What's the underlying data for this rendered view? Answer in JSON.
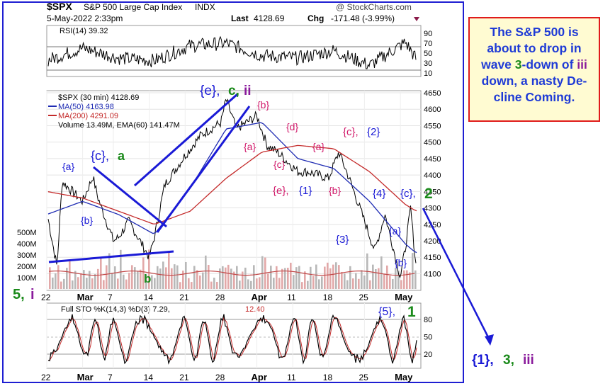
{
  "header": {
    "symbol": "$SPX",
    "name": "S&P 500 Large Cap Index",
    "exchange": "INDX",
    "watermark": "@ StockCharts.com",
    "date": "5-May-2022 2:33pm",
    "last_label": "Last",
    "last_value": "4128.69",
    "chg_label": "Chg",
    "chg_value": "-171.48 (-3.99%)"
  },
  "rsi": {
    "label": "RSI(14) 39.32",
    "ticks": [
      "90",
      "70",
      "50",
      "30",
      "10"
    ],
    "overbought_level": 70,
    "oversold_level": 30
  },
  "main_legend": {
    "price": "$SPX (30 min) 4128.69",
    "ma50": "MA(50) 4163.98",
    "ma200": "MA(200) 4291.09",
    "volume": "Volume 13.49M, EMA(60) 141.47M"
  },
  "price_axis": [
    "4650",
    "4600",
    "4550",
    "4500",
    "4450",
    "4400",
    "4350",
    "4300",
    "4250",
    "4200",
    "4150",
    "4100"
  ],
  "volume_axis": [
    "500M",
    "400M",
    "300M",
    "200M",
    "100M"
  ],
  "x_axis": [
    "22",
    "Mar",
    "7",
    "14",
    "21",
    "28",
    "Apr",
    "11",
    "18",
    "25",
    "May"
  ],
  "sto": {
    "label_prefix": "Full STO %K(14,3) %D(3) 7.29,",
    "label_value": "12.40",
    "ticks": [
      "80",
      "50",
      "20"
    ]
  },
  "wave_labels": {
    "a_top": "{a}",
    "b_left": "{b}",
    "c_a": "{c},",
    "c_a2": "a",
    "b_low": "b",
    "five_i": "5,",
    "five_i2": "i",
    "e_c_ii": "{e},",
    "e_c_ii2": "c,",
    "e_c_ii3": "ii",
    "b_mid": "{b}",
    "a_mid": "{a}",
    "c_mid": "{c}",
    "d_mid": "{d}",
    "a_mid2": "{a}",
    "c2": "{c},",
    "c2b": "{2}",
    "e1": "{e},",
    "e1b": "{1}",
    "b_mid2": "{b}",
    "three": "{3}",
    "four": "{4}",
    "a_right": "{a}",
    "c_right": "{c},",
    "c_right2": "2",
    "b_right": "{b}",
    "five_1": "{5},",
    "five_1b": "1",
    "proj1": "{1},",
    "proj2": "3,",
    "proj3": "iii"
  },
  "annotation": {
    "l1": "The S&P 500 is",
    "l2": "about to drop in",
    "l3a": "wave ",
    "l3b": "3",
    "l3c": "-down of ",
    "l3d": "iii",
    "l4": "down, a nasty De-",
    "l5": "cline Coming."
  },
  "chart_data": [
    {
      "type": "line",
      "title": "$SPX S&P 500 Large Cap Index INDX",
      "subtitle": "5-May-2022 2:33pm",
      "series": [
        {
          "name": "$SPX (30 min) 4128.69",
          "x": [
            "2022-02-22",
            "2022-02-24",
            "2022-02-25",
            "2022-03-01",
            "2022-03-03",
            "2022-03-04",
            "2022-03-07",
            "2022-03-08",
            "2022-03-10",
            "2022-03-14",
            "2022-03-15",
            "2022-03-17",
            "2022-03-21",
            "2022-03-24",
            "2022-03-28",
            "2022-03-29",
            "2022-03-31",
            "2022-04-04",
            "2022-04-06",
            "2022-04-08",
            "2022-04-12",
            "2022-04-14",
            "2022-04-18",
            "2022-04-20",
            "2022-04-22",
            "2022-04-25",
            "2022-04-27",
            "2022-04-29",
            "2022-05-02",
            "2022-05-03",
            "2022-05-04",
            "2022-05-05"
          ],
          "values": [
            4290,
            4120,
            4380,
            4320,
            4395,
            4330,
            4200,
            4210,
            4260,
            4150,
            4210,
            4370,
            4460,
            4520,
            4560,
            4630,
            4540,
            4580,
            4490,
            4470,
            4410,
            4410,
            4390,
            4470,
            4390,
            4260,
            4170,
            4280,
            4090,
            4180,
            4300,
            4128.69
          ]
        },
        {
          "name": "MA(50) 4163.98",
          "x": [
            "2022-02-22",
            "2022-03-01",
            "2022-03-08",
            "2022-03-15",
            "2022-03-22",
            "2022-03-29",
            "2022-04-05",
            "2022-04-12",
            "2022-04-19",
            "2022-04-26",
            "2022-05-03",
            "2022-05-05"
          ],
          "values": [
            4280,
            4320,
            4280,
            4220,
            4360,
            4540,
            4560,
            4450,
            4420,
            4320,
            4190,
            4163.98
          ]
        },
        {
          "name": "MA(200) 4291.09",
          "x": [
            "2022-02-22",
            "2022-03-01",
            "2022-03-08",
            "2022-03-15",
            "2022-03-22",
            "2022-03-29",
            "2022-04-05",
            "2022-04-12",
            "2022-04-19",
            "2022-04-26",
            "2022-05-03",
            "2022-05-05"
          ],
          "values": [
            4350,
            4330,
            4290,
            4250,
            4290,
            4390,
            4470,
            4490,
            4480,
            4410,
            4310,
            4291.09
          ]
        }
      ],
      "ylim": [
        4060,
        4650
      ],
      "xlabel": "",
      "ylabel": ""
    },
    {
      "type": "line",
      "title": "RSI(14) 39.32",
      "series": [
        {
          "name": "RSI(14)",
          "x": [
            "2022-02-22",
            "2022-03-01",
            "2022-03-08",
            "2022-03-15",
            "2022-03-22",
            "2022-03-29",
            "2022-04-05",
            "2022-04-12",
            "2022-04-19",
            "2022-04-26",
            "2022-05-03",
            "2022-05-05"
          ],
          "values": [
            35,
            60,
            40,
            35,
            65,
            70,
            45,
            40,
            55,
            25,
            72,
            39.32
          ]
        }
      ],
      "ylim": [
        10,
        90
      ]
    },
    {
      "type": "bar",
      "title": "Volume 13.49M, EMA(60) 141.47M",
      "ylim": [
        0,
        500
      ],
      "ylabel": "M"
    },
    {
      "type": "line",
      "title": "Full STO %K(14,3) %D(3) 7.29, 12.40",
      "ylim": [
        0,
        100
      ],
      "series": [
        {
          "name": "%K(14,3)",
          "values": [
            7.29
          ]
        },
        {
          "name": "%D(3)",
          "values": [
            12.4
          ]
        }
      ]
    }
  ]
}
